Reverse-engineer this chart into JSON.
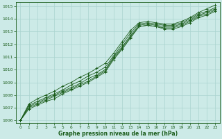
{
  "xlabel": "Graphe pression niveau de la mer (hPa)",
  "xlim": [
    0,
    23
  ],
  "ylim": [
    1006,
    1015
  ],
  "yticks": [
    1006,
    1007,
    1008,
    1009,
    1010,
    1011,
    1012,
    1013,
    1014,
    1015
  ],
  "xticks": [
    0,
    1,
    2,
    3,
    4,
    5,
    6,
    7,
    8,
    9,
    10,
    11,
    12,
    13,
    14,
    15,
    16,
    17,
    18,
    19,
    20,
    21,
    22,
    23
  ],
  "background_color": "#cceae7",
  "grid_color": "#aad4d0",
  "line_color": "#1a5c1a",
  "lines": [
    [
      1006.0,
      1006.9,
      1007.2,
      1007.5,
      1007.7,
      1008.1,
      1008.4,
      1008.7,
      1009.0,
      1009.4,
      1009.8,
      1010.8,
      1011.6,
      1012.5,
      1013.4,
      1013.5,
      1013.4,
      1013.2,
      1013.2,
      1013.4,
      1013.7,
      1014.1,
      1014.3,
      1014.6
    ],
    [
      1006.0,
      1007.0,
      1007.3,
      1007.6,
      1007.9,
      1008.2,
      1008.5,
      1008.8,
      1009.1,
      1009.5,
      1009.9,
      1010.9,
      1011.7,
      1012.6,
      1013.4,
      1013.5,
      1013.4,
      1013.3,
      1013.3,
      1013.5,
      1013.8,
      1014.2,
      1014.4,
      1014.7
    ],
    [
      1006.0,
      1007.1,
      1007.4,
      1007.7,
      1008.0,
      1008.3,
      1008.6,
      1008.9,
      1009.3,
      1009.6,
      1010.0,
      1011.0,
      1011.8,
      1012.7,
      1013.5,
      1013.6,
      1013.5,
      1013.4,
      1013.4,
      1013.6,
      1013.9,
      1014.3,
      1014.5,
      1014.8
    ],
    [
      1006.0,
      1007.2,
      1007.5,
      1007.8,
      1008.1,
      1008.4,
      1008.8,
      1009.1,
      1009.5,
      1009.8,
      1010.2,
      1011.1,
      1012.0,
      1012.9,
      1013.6,
      1013.7,
      1013.6,
      1013.5,
      1013.5,
      1013.7,
      1014.0,
      1014.4,
      1014.6,
      1014.9
    ],
    [
      1006.0,
      1007.3,
      1007.7,
      1008.0,
      1008.3,
      1008.7,
      1009.0,
      1009.4,
      1009.7,
      1010.1,
      1010.5,
      1011.3,
      1012.2,
      1013.1,
      1013.7,
      1013.8,
      1013.7,
      1013.6,
      1013.6,
      1013.8,
      1014.1,
      1014.5,
      1014.8,
      1015.1
    ]
  ]
}
